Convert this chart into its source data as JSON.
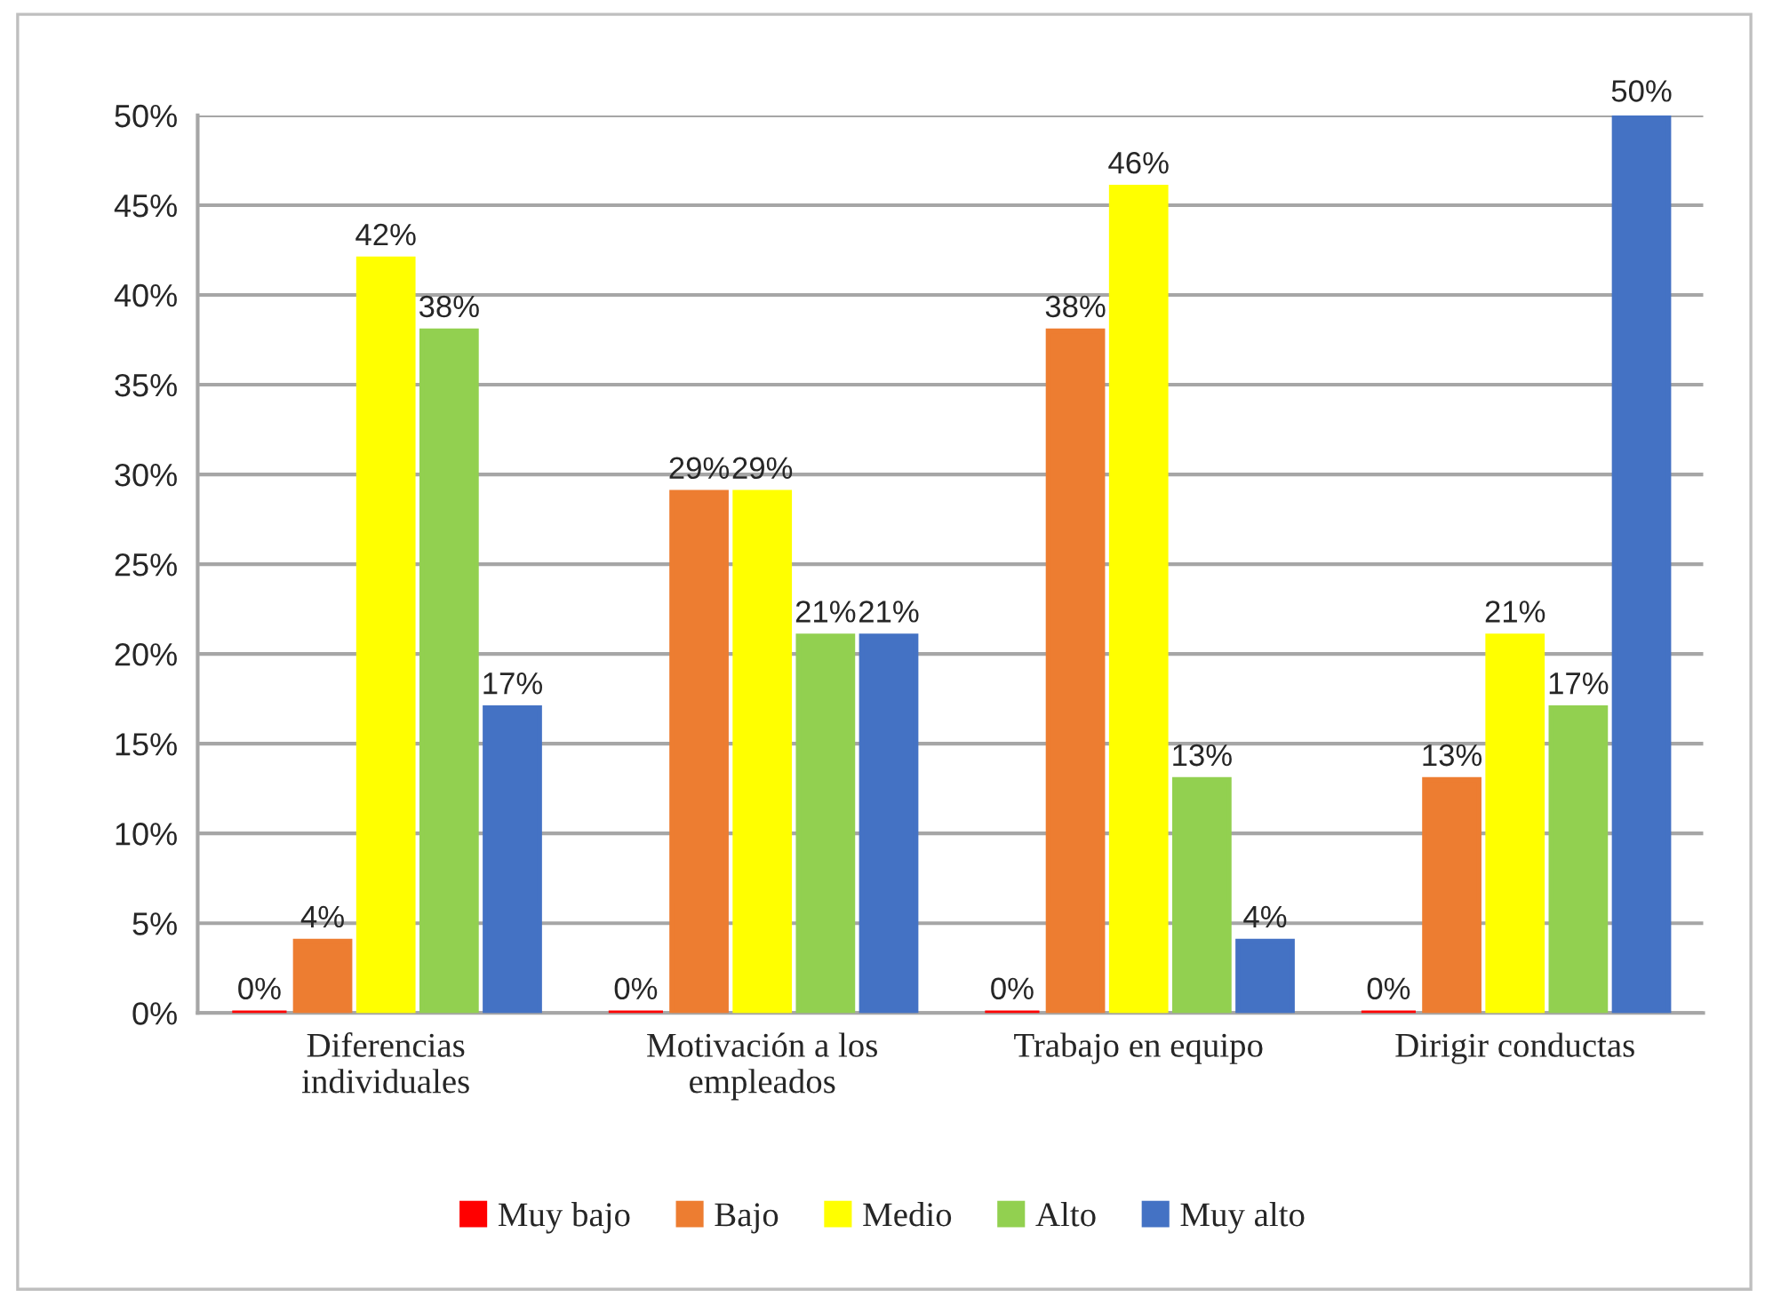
{
  "chart_data": {
    "type": "bar",
    "categories": [
      "Diferencias individuales",
      "Motivación a los empleados",
      "Trabajo en equipo",
      "Dirigir conductas"
    ],
    "series": [
      {
        "name": "Muy bajo",
        "color": "#ff0000",
        "values": [
          0,
          0,
          0,
          0
        ],
        "value_labels": [
          "0%",
          "0%",
          "0%",
          "0%"
        ]
      },
      {
        "name": "Bajo",
        "color": "#ed7d31",
        "values": [
          4,
          29,
          38,
          13
        ],
        "value_labels": [
          "4%",
          "29%",
          "38%",
          "13%"
        ]
      },
      {
        "name": "Medio",
        "color": "#ffff00",
        "values": [
          42,
          29,
          46,
          21
        ],
        "value_labels": [
          "42%",
          "29%",
          "46%",
          "21%"
        ]
      },
      {
        "name": "Alto",
        "color": "#92d050",
        "values": [
          38,
          21,
          13,
          17
        ],
        "value_labels": [
          "38%",
          "21%",
          "13%",
          "17%"
        ]
      },
      {
        "name": "Muy alto",
        "color": "#4472c4",
        "values": [
          17,
          21,
          4,
          50
        ],
        "value_labels": [
          "17%",
          "21%",
          "4%",
          "50%"
        ]
      }
    ],
    "ylim": [
      0,
      50
    ],
    "yticks": [
      {
        "value": 0,
        "label": "0%"
      },
      {
        "value": 5,
        "label": "5%"
      },
      {
        "value": 10,
        "label": "10%"
      },
      {
        "value": 15,
        "label": "15%"
      },
      {
        "value": 20,
        "label": "20%"
      },
      {
        "value": 25,
        "label": "25%"
      },
      {
        "value": 30,
        "label": "30%"
      },
      {
        "value": 35,
        "label": "35%"
      },
      {
        "value": 40,
        "label": "40%"
      },
      {
        "value": 45,
        "label": "45%"
      },
      {
        "value": 50,
        "label": "50%"
      }
    ],
    "grid": "y",
    "legend": "bottom"
  }
}
